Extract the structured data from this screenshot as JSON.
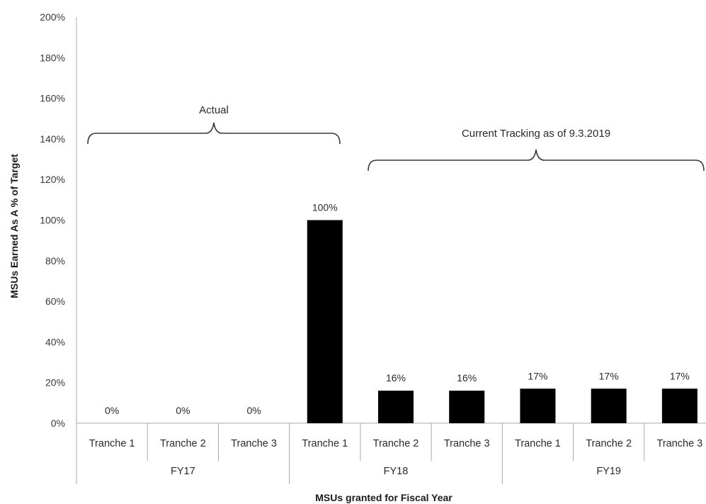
{
  "chart_data": {
    "type": "bar",
    "title": "",
    "xlabel": "MSUs granted for Fiscal Year",
    "ylabel": "MSUs Earned As A % of Target",
    "ylim": [
      0,
      200
    ],
    "yticks": [
      "0%",
      "20%",
      "40%",
      "60%",
      "80%",
      "100%",
      "120%",
      "140%",
      "160%",
      "180%",
      "200%"
    ],
    "grid": false,
    "legend": "none",
    "bar_color": "#000000",
    "categories": [
      "Tranche 1",
      "Tranche 2",
      "Tranche 3",
      "Tranche 1",
      "Tranche 2",
      "Tranche 3",
      "Tranche 1",
      "Tranche 2",
      "Tranche 3"
    ],
    "values": [
      0,
      0,
      0,
      100,
      16,
      16,
      17,
      17,
      17
    ],
    "data_labels": [
      "0%",
      "0%",
      "0%",
      "100%",
      "16%",
      "16%",
      "17%",
      "17%",
      "17%"
    ],
    "groups": [
      {
        "label": "FY17",
        "count": 3
      },
      {
        "label": "FY18",
        "count": 3
      },
      {
        "label": "FY19",
        "count": 3
      }
    ],
    "annotations": [
      {
        "text": "Actual",
        "from_index": 0,
        "to_index": 3
      },
      {
        "text": "Current Tracking as of 9.3.2019",
        "from_index": 4,
        "to_index": 8
      }
    ]
  }
}
